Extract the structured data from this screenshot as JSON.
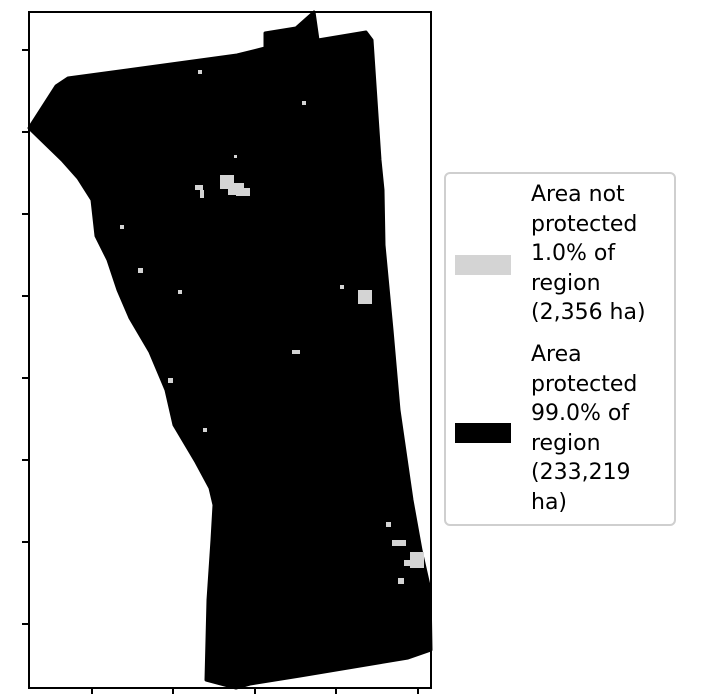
{
  "colors": {
    "protected": "#000000",
    "not_protected": "#d4d4d4",
    "frame": "#000000",
    "background": "#ffffff"
  },
  "legend": {
    "entries": [
      {
        "key": "not_protected",
        "label": "Area not\nprotected\n1.0% of\nregion\n(2,356 ha)"
      },
      {
        "key": "protected",
        "label": "Area\nprotected\n99.0% of\nregion\n(233,219\nha)"
      }
    ]
  },
  "map_data": {
    "protected_share_percent": 99.0,
    "not_protected_share_percent": 1.0,
    "protected_area_ha": 233219,
    "not_protected_area_ha": 2356
  }
}
